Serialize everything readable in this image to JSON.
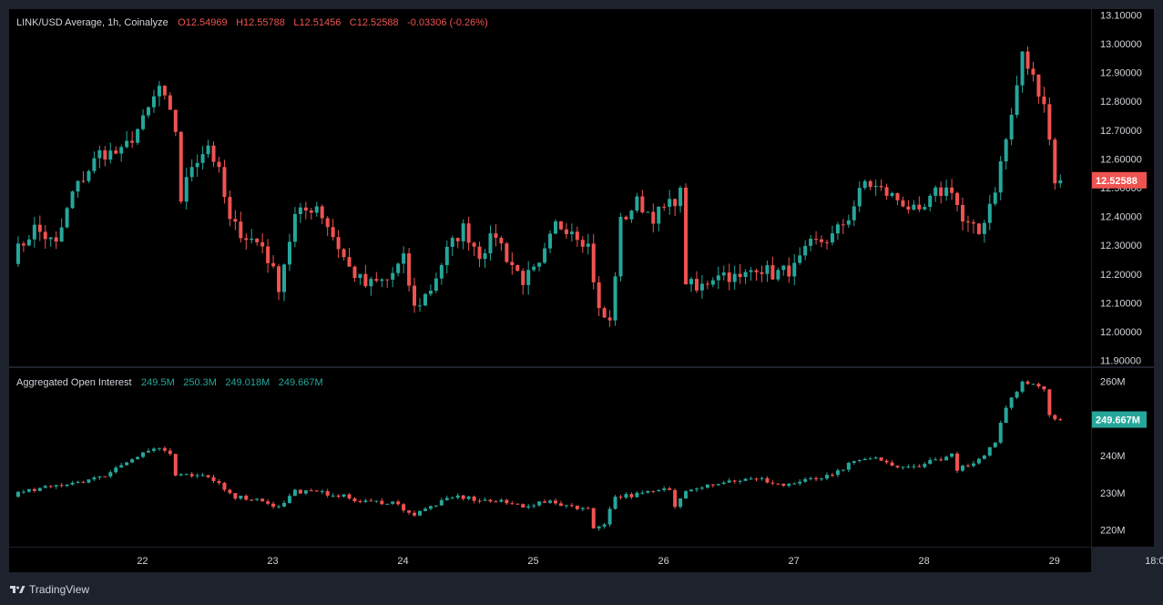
{
  "colors": {
    "up": "#26a69a",
    "down": "#ef5350",
    "frame": "#1e222d",
    "pane": "#000000",
    "text": "#d1d4dc"
  },
  "footer": {
    "brand": "TradingView",
    "logo_icon": "tradingview-logo-icon"
  },
  "chart_data": [
    {
      "type": "candlestick",
      "title": "LINK/USD Average, 1h, Coinalyze",
      "ohlc_legend": {
        "open": "O12.54969",
        "high": "H12.55788",
        "low": "L12.51456",
        "close": "C12.52588",
        "change": "-0.03306 (-0.26%)"
      },
      "last_value_label": "12.52588",
      "last_value": 12.52588,
      "ylim": [
        11.88,
        13.12
      ],
      "y_ticks": [
        {
          "v": 13.1,
          "t": "13.10000"
        },
        {
          "v": 13.0,
          "t": "13.00000"
        },
        {
          "v": 12.9,
          "t": "12.90000"
        },
        {
          "v": 12.8,
          "t": "12.80000"
        },
        {
          "v": 12.7,
          "t": "12.70000"
        },
        {
          "v": 12.6,
          "t": "12.60000"
        },
        {
          "v": 12.5,
          "t": "12.50000"
        },
        {
          "v": 12.4,
          "t": "12.40000"
        },
        {
          "v": 12.3,
          "t": "12.30000"
        },
        {
          "v": 12.2,
          "t": "12.20000"
        },
        {
          "v": 12.1,
          "t": "12.10000"
        },
        {
          "v": 12.0,
          "t": "12.00000"
        },
        {
          "v": 11.9,
          "t": "11.90000"
        }
      ],
      "x_ticks": [
        "22",
        "23",
        "24",
        "25",
        "26",
        "27",
        "28",
        "29",
        "18:00"
      ],
      "x_tick_index": [
        14,
        38,
        62,
        86,
        110,
        134,
        158,
        182,
        201
      ],
      "close_path": [
        {
          "i": 0,
          "v": 12.26
        },
        {
          "i": 4,
          "v": 12.36
        },
        {
          "i": 8,
          "v": 12.3
        },
        {
          "i": 11,
          "v": 12.48
        },
        {
          "i": 16,
          "v": 12.62
        },
        {
          "i": 20,
          "v": 12.62
        },
        {
          "i": 24,
          "v": 12.73
        },
        {
          "i": 27,
          "v": 12.85
        },
        {
          "i": 30,
          "v": 12.7
        },
        {
          "i": 31,
          "v": 12.46
        },
        {
          "i": 33,
          "v": 12.58
        },
        {
          "i": 36,
          "v": 12.65
        },
        {
          "i": 38,
          "v": 12.55
        },
        {
          "i": 40,
          "v": 12.38
        },
        {
          "i": 43,
          "v": 12.33
        },
        {
          "i": 46,
          "v": 12.3
        },
        {
          "i": 49,
          "v": 12.16
        },
        {
          "i": 52,
          "v": 12.4
        },
        {
          "i": 56,
          "v": 12.44
        },
        {
          "i": 58,
          "v": 12.37
        },
        {
          "i": 62,
          "v": 12.22
        },
        {
          "i": 65,
          "v": 12.16
        },
        {
          "i": 69,
          "v": 12.18
        },
        {
          "i": 72,
          "v": 12.25
        },
        {
          "i": 74,
          "v": 12.08
        },
        {
          "i": 77,
          "v": 12.15
        },
        {
          "i": 80,
          "v": 12.28
        },
        {
          "i": 83,
          "v": 12.36
        },
        {
          "i": 86,
          "v": 12.27
        },
        {
          "i": 89,
          "v": 12.34
        },
        {
          "i": 91,
          "v": 12.26
        },
        {
          "i": 94,
          "v": 12.18
        },
        {
          "i": 97,
          "v": 12.22
        },
        {
          "i": 100,
          "v": 12.37
        },
        {
          "i": 103,
          "v": 12.36
        },
        {
          "i": 106,
          "v": 12.3
        },
        {
          "i": 108,
          "v": 12.07
        },
        {
          "i": 110,
          "v": 12.03
        },
        {
          "i": 112,
          "v": 12.38
        },
        {
          "i": 115,
          "v": 12.45
        },
        {
          "i": 118,
          "v": 12.4
        },
        {
          "i": 121,
          "v": 12.44
        },
        {
          "i": 123,
          "v": 12.48
        },
        {
          "i": 124,
          "v": 12.18
        },
        {
          "i": 126,
          "v": 12.14
        },
        {
          "i": 130,
          "v": 12.21
        },
        {
          "i": 134,
          "v": 12.18
        },
        {
          "i": 137,
          "v": 12.23
        },
        {
          "i": 140,
          "v": 12.2
        },
        {
          "i": 144,
          "v": 12.22
        },
        {
          "i": 147,
          "v": 12.3
        },
        {
          "i": 151,
          "v": 12.33
        },
        {
          "i": 154,
          "v": 12.4
        },
        {
          "i": 157,
          "v": 12.52
        },
        {
          "i": 161,
          "v": 12.48
        },
        {
          "i": 164,
          "v": 12.45
        },
        {
          "i": 167,
          "v": 12.4
        },
        {
          "i": 170,
          "v": 12.48
        },
        {
          "i": 173,
          "v": 12.5
        },
        {
          "i": 175,
          "v": 12.38
        },
        {
          "i": 178,
          "v": 12.34
        },
        {
          "i": 181,
          "v": 12.5
        },
        {
          "i": 184,
          "v": 12.75
        },
        {
          "i": 186,
          "v": 12.96
        },
        {
          "i": 188,
          "v": 12.88
        },
        {
          "i": 190,
          "v": 12.8
        },
        {
          "i": 192,
          "v": 12.53
        },
        {
          "i": 193,
          "v": 12.52588
        }
      ]
    },
    {
      "type": "candlestick",
      "title": "Aggregated Open Interest",
      "legend_values": [
        "249.5M",
        "250.3M",
        "249.018M",
        "249.667M"
      ],
      "last_value_label": "249.667M",
      "last_value": 249.667,
      "ylim": [
        215.5,
        263.5
      ],
      "y_ticks": [
        {
          "v": 260,
          "t": "260M"
        },
        {
          "v": 250,
          "t": "250M"
        },
        {
          "v": 240,
          "t": "240M"
        },
        {
          "v": 230,
          "t": "230M"
        },
        {
          "v": 220,
          "t": "220M"
        }
      ],
      "close_path": [
        {
          "i": 0,
          "v": 229.5
        },
        {
          "i": 10,
          "v": 232.5
        },
        {
          "i": 16,
          "v": 234.0
        },
        {
          "i": 20,
          "v": 237.5
        },
        {
          "i": 24,
          "v": 241.0
        },
        {
          "i": 27,
          "v": 242.0
        },
        {
          "i": 29,
          "v": 240.5
        },
        {
          "i": 30,
          "v": 234.5
        },
        {
          "i": 33,
          "v": 234.5
        },
        {
          "i": 36,
          "v": 234.0
        },
        {
          "i": 38,
          "v": 232.5
        },
        {
          "i": 41,
          "v": 229.0
        },
        {
          "i": 46,
          "v": 228.0
        },
        {
          "i": 49,
          "v": 226.0
        },
        {
          "i": 52,
          "v": 230.5
        },
        {
          "i": 56,
          "v": 230.0
        },
        {
          "i": 60,
          "v": 229.5
        },
        {
          "i": 64,
          "v": 227.5
        },
        {
          "i": 70,
          "v": 227.5
        },
        {
          "i": 74,
          "v": 224.0
        },
        {
          "i": 78,
          "v": 227.0
        },
        {
          "i": 82,
          "v": 229.0
        },
        {
          "i": 86,
          "v": 228.0
        },
        {
          "i": 90,
          "v": 227.5
        },
        {
          "i": 94,
          "v": 226.5
        },
        {
          "i": 98,
          "v": 227.5
        },
        {
          "i": 103,
          "v": 226.5
        },
        {
          "i": 106,
          "v": 225.5
        },
        {
          "i": 107,
          "v": 220.5
        },
        {
          "i": 109,
          "v": 222.0
        },
        {
          "i": 111,
          "v": 229.0
        },
        {
          "i": 115,
          "v": 229.5
        },
        {
          "i": 119,
          "v": 230.5
        },
        {
          "i": 121,
          "v": 231.0
        },
        {
          "i": 122,
          "v": 226.0
        },
        {
          "i": 124,
          "v": 231.0
        },
        {
          "i": 129,
          "v": 232.5
        },
        {
          "i": 134,
          "v": 233.5
        },
        {
          "i": 138,
          "v": 233.5
        },
        {
          "i": 142,
          "v": 232.0
        },
        {
          "i": 147,
          "v": 233.5
        },
        {
          "i": 151,
          "v": 234.5
        },
        {
          "i": 154,
          "v": 237.5
        },
        {
          "i": 157,
          "v": 239.0
        },
        {
          "i": 160,
          "v": 239.0
        },
        {
          "i": 163,
          "v": 236.5
        },
        {
          "i": 166,
          "v": 237.0
        },
        {
          "i": 169,
          "v": 238.5
        },
        {
          "i": 173,
          "v": 240.0
        },
        {
          "i": 174,
          "v": 236.5
        },
        {
          "i": 176,
          "v": 237.0
        },
        {
          "i": 179,
          "v": 239.5
        },
        {
          "i": 181,
          "v": 244.0
        },
        {
          "i": 183,
          "v": 253.0
        },
        {
          "i": 186,
          "v": 260.0
        },
        {
          "i": 188,
          "v": 259.5
        },
        {
          "i": 190,
          "v": 258.0
        },
        {
          "i": 191,
          "v": 251.0
        },
        {
          "i": 193,
          "v": 249.667
        }
      ]
    }
  ]
}
